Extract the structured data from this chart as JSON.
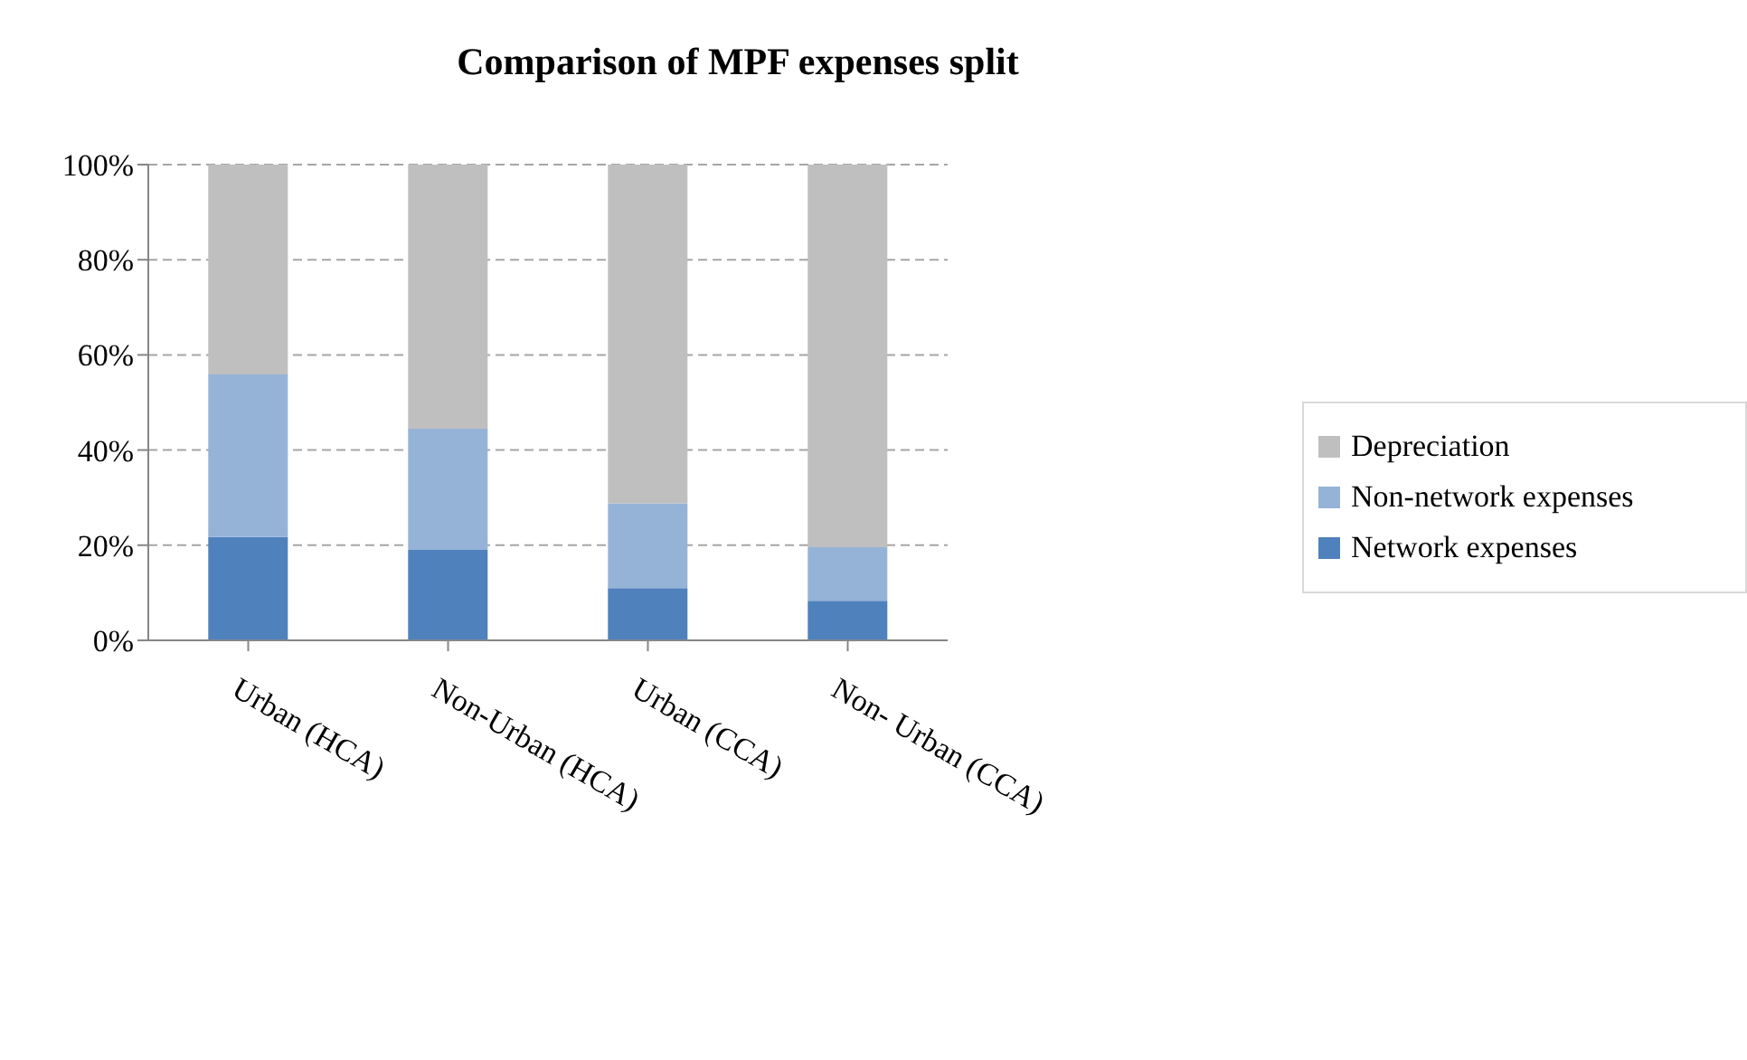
{
  "chart_data": {
    "type": "bar",
    "title": "Comparison of MPF expenses split",
    "stacked": true,
    "categories": [
      "Urban (HCA)",
      "Non-Urban (HCA)",
      "Urban (CCA)",
      "Non- Urban (CCA)"
    ],
    "series": [
      {
        "name": "Network expenses",
        "color": "#4f81bd",
        "values": [
          21.7,
          19.0,
          11.0,
          8.3
        ]
      },
      {
        "name": "Non-network expenses",
        "color": "#95b3d7",
        "values": [
          34.2,
          25.5,
          17.8,
          11.3
        ]
      },
      {
        "name": "Depreciation",
        "color": "#bfbfbf",
        "values": [
          44.1,
          55.5,
          71.2,
          80.4
        ]
      }
    ],
    "ylim": [
      0,
      100
    ],
    "yticks": [
      {
        "value": 0,
        "label": "0%"
      },
      {
        "value": 20,
        "label": "20%"
      },
      {
        "value": 40,
        "label": "40%"
      },
      {
        "value": 60,
        "label": "60%"
      },
      {
        "value": 80,
        "label": "80%"
      },
      {
        "value": 100,
        "label": "100%"
      }
    ],
    "grid": "y",
    "legend": "right"
  }
}
